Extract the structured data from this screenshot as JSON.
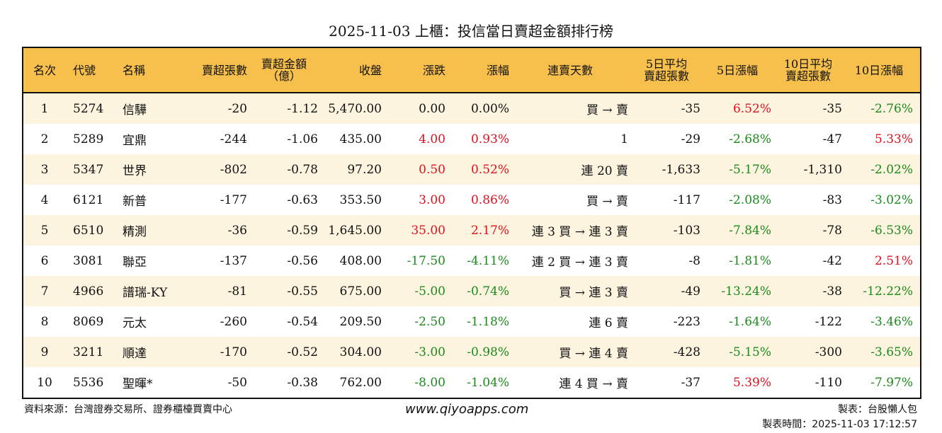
{
  "title": "2025-11-03 上櫃：投信當日賣超金額排行榜",
  "headers": [
    "名次",
    "代號",
    "名稱",
    "賣超張數",
    "賣超金額\n（億）",
    "收盤",
    "漲跌",
    "漲幅",
    "連賣天數",
    "5日平均\n賣超張數",
    "5日漲幅",
    "10日平均\n賣超張數",
    "10日漲幅"
  ],
  "colors": {
    "header_bg": "#f7bf4c",
    "up": "#e0101e",
    "down": "#1a8a1a",
    "row_alt": "#fdf4e0"
  },
  "rows": [
    [
      "1",
      "5274",
      "信驊",
      "-20",
      "-1.12",
      "5,470.00",
      "0.00",
      "0.00%",
      "買 → 賣",
      "-35",
      "6.52%",
      "-35",
      "-2.76%"
    ],
    [
      "2",
      "5289",
      "宜鼎",
      "-244",
      "-1.06",
      "435.00",
      "4.00",
      "0.93%",
      "1",
      "-29",
      "-2.68%",
      "-47",
      "5.33%"
    ],
    [
      "3",
      "5347",
      "世界",
      "-802",
      "-0.78",
      "97.20",
      "0.50",
      "0.52%",
      "連 20 賣",
      "-1,633",
      "-5.17%",
      "-1,310",
      "-2.02%"
    ],
    [
      "4",
      "6121",
      "新普",
      "-177",
      "-0.63",
      "353.50",
      "3.00",
      "0.86%",
      "買 → 賣",
      "-117",
      "-2.08%",
      "-83",
      "-3.02%"
    ],
    [
      "5",
      "6510",
      "精測",
      "-36",
      "-0.59",
      "1,645.00",
      "35.00",
      "2.17%",
      "連 3 買 → 連 3 賣",
      "-103",
      "-7.84%",
      "-78",
      "-6.53%"
    ],
    [
      "6",
      "3081",
      "聯亞",
      "-137",
      "-0.56",
      "408.00",
      "-17.50",
      "-4.11%",
      "連 2 買 → 連 3 賣",
      "-8",
      "-1.81%",
      "-42",
      "2.51%"
    ],
    [
      "7",
      "4966",
      "譜瑞-KY",
      "-81",
      "-0.55",
      "675.00",
      "-5.00",
      "-0.74%",
      "買 → 連 3 賣",
      "-49",
      "-13.24%",
      "-38",
      "-12.22%"
    ],
    [
      "8",
      "8069",
      "元太",
      "-260",
      "-0.54",
      "209.50",
      "-2.50",
      "-1.18%",
      "連 6 賣",
      "-223",
      "-1.64%",
      "-122",
      "-3.46%"
    ],
    [
      "9",
      "3211",
      "順達",
      "-170",
      "-0.52",
      "304.00",
      "-3.00",
      "-0.98%",
      "買 → 連 4 賣",
      "-428",
      "-5.15%",
      "-300",
      "-3.65%"
    ],
    [
      "10",
      "5536",
      "聖暉*",
      "-50",
      "-0.38",
      "762.00",
      "-8.00",
      "-1.04%",
      "連 4 買 → 賣",
      "-37",
      "5.39%",
      "-110",
      "-7.97%"
    ]
  ],
  "footer": {
    "source": "資料來源：台灣證券交易所、證券櫃檯買賣中心",
    "url": "www.qiyoapps.com",
    "maker": "製表：台股懶人包",
    "time": "製表時間：2025-11-03 17:12:57"
  }
}
